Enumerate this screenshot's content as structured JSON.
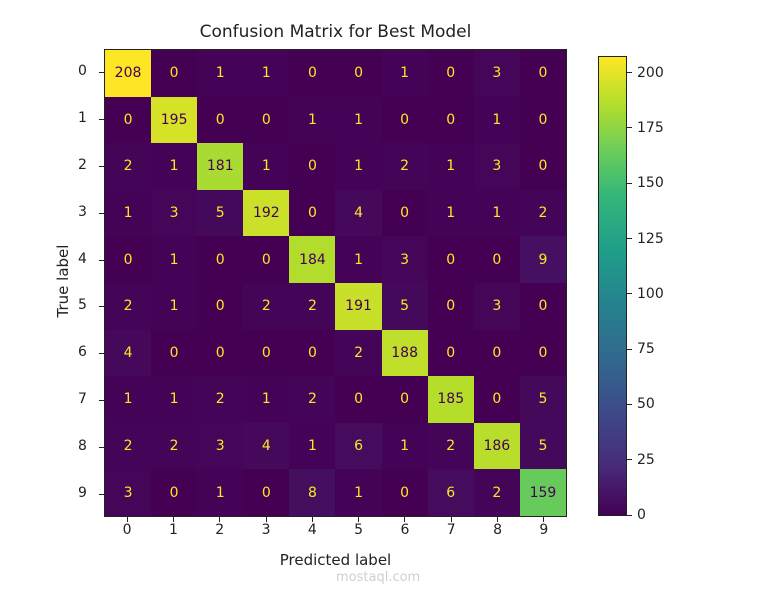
{
  "chart_data": {
    "type": "heatmap",
    "title": "Confusion Matrix for Best Model",
    "xlabel": "Predicted label",
    "ylabel": "True label",
    "x_ticks": [
      "0",
      "1",
      "2",
      "3",
      "4",
      "5",
      "6",
      "7",
      "8",
      "9"
    ],
    "y_ticks": [
      "0",
      "1",
      "2",
      "3",
      "4",
      "5",
      "6",
      "7",
      "8",
      "9"
    ],
    "colormap": "viridis",
    "colorbar": {
      "ticks": [
        0,
        25,
        50,
        75,
        100,
        125,
        150,
        175,
        200
      ],
      "range": [
        0,
        208
      ]
    },
    "matrix": [
      [
        208,
        0,
        1,
        1,
        0,
        0,
        1,
        0,
        3,
        0
      ],
      [
        0,
        195,
        0,
        0,
        1,
        1,
        0,
        0,
        1,
        0
      ],
      [
        2,
        1,
        181,
        1,
        0,
        1,
        2,
        1,
        3,
        0
      ],
      [
        1,
        3,
        5,
        192,
        0,
        4,
        0,
        1,
        1,
        2
      ],
      [
        0,
        1,
        0,
        0,
        184,
        1,
        3,
        0,
        0,
        9
      ],
      [
        2,
        1,
        0,
        2,
        2,
        191,
        5,
        0,
        3,
        0
      ],
      [
        4,
        0,
        0,
        0,
        0,
        2,
        188,
        0,
        0,
        0
      ],
      [
        1,
        1,
        2,
        1,
        2,
        0,
        0,
        185,
        0,
        5
      ],
      [
        2,
        2,
        3,
        4,
        1,
        6,
        1,
        2,
        186,
        5
      ],
      [
        3,
        0,
        1,
        0,
        8,
        1,
        0,
        6,
        2,
        159
      ]
    ]
  },
  "watermark": "mostaql.com"
}
